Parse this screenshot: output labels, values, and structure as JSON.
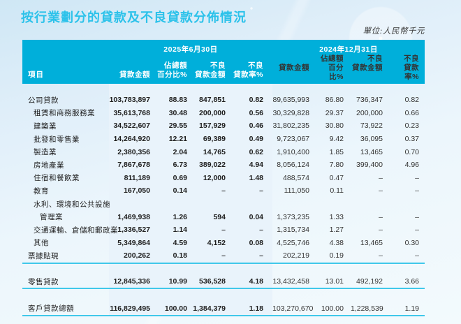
{
  "page": {
    "title": "按行業劃分的貸款及不良貸款分佈情況",
    "unit_note": "單位:人民幣千元"
  },
  "colors": {
    "title": "#2cc2ea",
    "header_bg": "#00afda",
    "highlight_band": "#e9f3fb",
    "rule_line": "#40c8ea"
  },
  "table": {
    "item_header": "項目",
    "periods": [
      {
        "date": "2025年6月30日",
        "cols": [
          {
            "top": "",
            "bottom": "貸款金額"
          },
          {
            "top": "佔總額",
            "bottom": "百分比%"
          },
          {
            "top": "不良",
            "bottom": "貸款金額"
          },
          {
            "top": "不良",
            "bottom": "貸款率%"
          }
        ]
      },
      {
        "date": "2024年12月31日",
        "cols": [
          {
            "top": "",
            "bottom": "貸款金額"
          },
          {
            "top": "佔總額",
            "bottom": "百分比%"
          },
          {
            "top": "不良",
            "bottom": "貸款金額"
          },
          {
            "top": "不良",
            "bottom": "貸款率%"
          }
        ]
      }
    ],
    "rows": [
      {
        "label": "公司貸款",
        "indent": 0,
        "values": [
          "103,783,897",
          "88.83",
          "847,851",
          "0.82",
          "89,635,993",
          "86.80",
          "736,347",
          "0.82"
        ]
      },
      {
        "label": "租賃和商務服務業",
        "indent": 1,
        "values": [
          "35,613,768",
          "30.48",
          "200,000",
          "0.56",
          "30,329,828",
          "29.37",
          "200,000",
          "0.66"
        ]
      },
      {
        "label": "建築業",
        "indent": 1,
        "values": [
          "34,522,607",
          "29.55",
          "157,929",
          "0.46",
          "31,802,235",
          "30.80",
          "73,922",
          "0.23"
        ]
      },
      {
        "label": "批發和零售業",
        "indent": 1,
        "values": [
          "14,264,920",
          "12.21",
          "69,389",
          "0.49",
          "9,723,067",
          "9.42",
          "36,095",
          "0.37"
        ]
      },
      {
        "label": "製造業",
        "indent": 1,
        "values": [
          "2,380,356",
          "2.04",
          "14,765",
          "0.62",
          "1,910,400",
          "1.85",
          "13,465",
          "0.70"
        ]
      },
      {
        "label": "房地產業",
        "indent": 1,
        "values": [
          "7,867,678",
          "6.73",
          "389,022",
          "4.94",
          "8,056,124",
          "7.80",
          "399,400",
          "4.96"
        ]
      },
      {
        "label": "住宿和餐飲業",
        "indent": 1,
        "values": [
          "811,189",
          "0.69",
          "12,000",
          "1.48",
          "488,574",
          "0.47",
          "–",
          "–"
        ]
      },
      {
        "label": "教育",
        "indent": 1,
        "values": [
          "167,050",
          "0.14",
          "–",
          "–",
          "111,050",
          "0.11",
          "–",
          "–"
        ]
      },
      {
        "label": "水利、環境和公共設施",
        "indent": 1,
        "values": [
          "",
          "",
          "",
          "",
          "",
          "",
          "",
          ""
        ]
      },
      {
        "label": "管理業",
        "indent": 2,
        "values": [
          "1,469,938",
          "1.26",
          "594",
          "0.04",
          "1,373,235",
          "1.33",
          "–",
          "–"
        ]
      },
      {
        "label": "交通運輸、倉儲和郵政業",
        "indent": 1,
        "values": [
          "1,336,527",
          "1.14",
          "–",
          "–",
          "1,315,734",
          "1.27",
          "–",
          "–"
        ]
      },
      {
        "label": "其他",
        "indent": 1,
        "values": [
          "5,349,864",
          "4.59",
          "4,152",
          "0.08",
          "4,525,746",
          "4.38",
          "13,465",
          "0.30"
        ]
      },
      {
        "label": "票據貼現",
        "indent": 0,
        "values": [
          "200,262",
          "0.18",
          "–",
          "–",
          "202,219",
          "0.19",
          "–",
          "–"
        ]
      }
    ],
    "retail_row": {
      "label": "零售貸款",
      "indent": 0,
      "values": [
        "12,845,336",
        "10.99",
        "536,528",
        "4.18",
        "13,432,458",
        "13.01",
        "492,192",
        "3.66"
      ]
    },
    "total_row": {
      "label": "客戶貸款總額",
      "indent": 0,
      "values": [
        "116,829,495",
        "100.00",
        "1,384,379",
        "1.18",
        "103,270,670",
        "100.00",
        "1,228,539",
        "1.19"
      ]
    }
  }
}
